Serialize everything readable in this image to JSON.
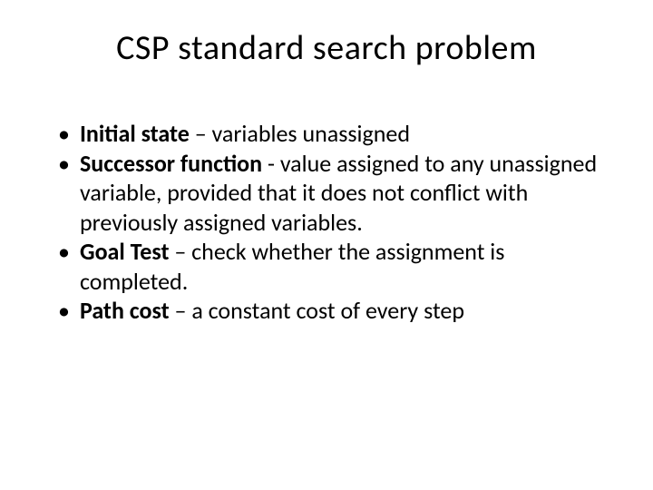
{
  "slide": {
    "title": "CSP standard search problem",
    "title_fontsize": 38,
    "title_color": "#000000",
    "body_fontsize": 26,
    "body_color": "#000000",
    "background_color": "#ffffff",
    "bullets": [
      {
        "label": "Initial state",
        "separator": " – ",
        "text": "variables unassigned"
      },
      {
        "label": "Successor function",
        "separator": " -  ",
        "text": "value assigned to any unassigned variable, provided that it does not conflict with previously assigned variables."
      },
      {
        "label": "Goal Test",
        "separator": " – ",
        "text": "check whether the assignment is completed."
      },
      {
        "label": "Path cost",
        "separator": " – ",
        "text": "a constant cost of every step"
      }
    ],
    "bullet_marker": "•"
  }
}
